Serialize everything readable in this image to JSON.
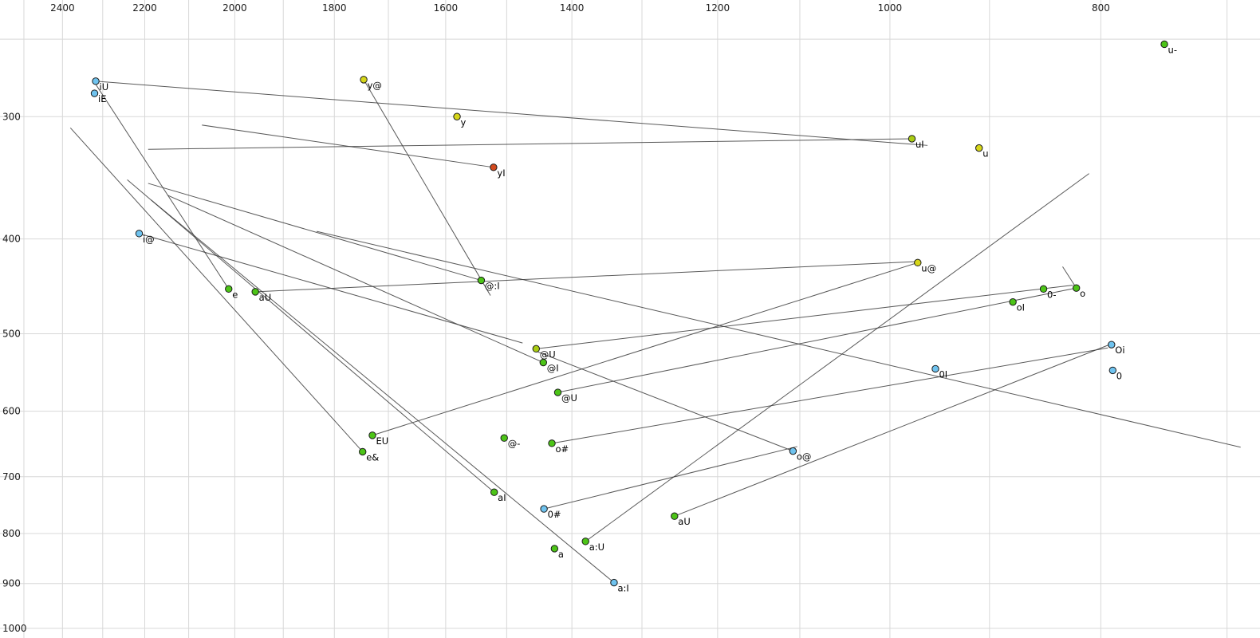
{
  "chart_data": {
    "type": "scatter",
    "title": "",
    "xlabel": "",
    "ylabel": "",
    "x_scale": "log",
    "y_scale": "log",
    "legend": "none",
    "grid": "on",
    "x_axis": {
      "position": "top",
      "reversed": true,
      "domain": [
        2564,
        676
      ],
      "ticks": [
        {
          "value": 2400,
          "label": "2400"
        },
        {
          "value": 2200,
          "label": "2200"
        },
        {
          "value": 2000,
          "label": "2000"
        },
        {
          "value": 1800,
          "label": "1800"
        },
        {
          "value": 1600,
          "label": "1600"
        },
        {
          "value": 1400,
          "label": "1400"
        },
        {
          "value": 1200,
          "label": "1200"
        },
        {
          "value": 1000,
          "label": "1000"
        },
        {
          "value": 800,
          "label": "800"
        }
      ],
      "grid": [
        2500,
        2400,
        2300,
        2200,
        2100,
        2000,
        1900,
        1800,
        1700,
        1600,
        1500,
        1400,
        1300,
        1200,
        1100,
        1000,
        900,
        800,
        700
      ]
    },
    "y_axis": {
      "position": "left",
      "reversed": false,
      "domain": [
        228,
        1023
      ],
      "ticks": [
        {
          "value": 300,
          "label": "300"
        },
        {
          "value": 400,
          "label": "400"
        },
        {
          "value": 500,
          "label": "500"
        },
        {
          "value": 600,
          "label": "600"
        },
        {
          "value": 700,
          "label": "700"
        },
        {
          "value": 800,
          "label": "800"
        },
        {
          "value": 900,
          "label": "900"
        },
        {
          "value": 1000,
          "label": "1000"
        }
      ],
      "grid": [
        250,
        300,
        400,
        500,
        600,
        700,
        800,
        900,
        1000
      ]
    },
    "style": {
      "background": "#ffffff",
      "grid_color": "#d8d8d8",
      "line_color": "#3c3c3c",
      "point_stroke": "#1a1a1a",
      "palette": {
        "green": "#4cc417",
        "yellow": "#d6d619",
        "yellowgreen": "#a9cc12",
        "blue": "#6fc3ef",
        "red": "#d2491e"
      }
    },
    "points": [
      {
        "label": "u-",
        "f2": 748,
        "f1": 253,
        "color": "green"
      },
      {
        "label": "iU",
        "f2": 2317,
        "f1": 276,
        "color": "blue"
      },
      {
        "label": "iE",
        "f2": 2320,
        "f1": 284,
        "color": "blue"
      },
      {
        "label": "y@",
        "f2": 1745,
        "f1": 275,
        "color": "yellow"
      },
      {
        "label": "y",
        "f2": 1581,
        "f1": 300,
        "color": "yellow"
      },
      {
        "label": "uI",
        "f2": 977,
        "f1": 316,
        "color": "yellowgreen"
      },
      {
        "label": "u",
        "f2": 910,
        "f1": 323,
        "color": "yellow"
      },
      {
        "label": "yI",
        "f2": 1521,
        "f1": 338,
        "color": "red"
      },
      {
        "label": "i@",
        "f2": 2213,
        "f1": 395,
        "color": "blue"
      },
      {
        "label": "e",
        "f2": 2013,
        "f1": 450,
        "color": "green"
      },
      {
        "label": "aU",
        "f2": 1957,
        "f1": 453,
        "color": "green"
      },
      {
        "label": "@:I",
        "f2": 1541,
        "f1": 441,
        "color": "green"
      },
      {
        "label": "u@",
        "f2": 971,
        "f1": 423,
        "color": "yellow"
      },
      {
        "label": "0-",
        "f2": 850,
        "f1": 450,
        "color": "green"
      },
      {
        "label": "o",
        "f2": 821,
        "f1": 449,
        "color": "green"
      },
      {
        "label": "oI",
        "f2": 878,
        "f1": 464,
        "color": "green"
      },
      {
        "label": "@U",
        "f2": 1454,
        "f1": 518,
        "color": "yellowgreen"
      },
      {
        "label": "@I",
        "f2": 1443,
        "f1": 535,
        "color": "green"
      },
      {
        "label": "Oi",
        "f2": 791,
        "f1": 513,
        "color": "blue"
      },
      {
        "label": "0I",
        "f2": 953,
        "f1": 543,
        "color": "blue"
      },
      {
        "label": "0",
        "f2": 790,
        "f1": 545,
        "color": "blue"
      },
      {
        "label": "@U",
        "f2": 1421,
        "f1": 574,
        "color": "green"
      },
      {
        "label": "EU",
        "f2": 1729,
        "f1": 635,
        "color": "green"
      },
      {
        "label": "e&",
        "f2": 1747,
        "f1": 660,
        "color": "green"
      },
      {
        "label": "@-",
        "f2": 1504,
        "f1": 639,
        "color": "green"
      },
      {
        "label": "o#",
        "f2": 1430,
        "f1": 647,
        "color": "green"
      },
      {
        "label": "o@",
        "f2": 1108,
        "f1": 659,
        "color": "blue"
      },
      {
        "label": "aI",
        "f2": 1520,
        "f1": 726,
        "color": "green"
      },
      {
        "label": "0#",
        "f2": 1442,
        "f1": 755,
        "color": "blue"
      },
      {
        "label": "aU",
        "f2": 1256,
        "f1": 768,
        "color": "green"
      },
      {
        "label": "a:U",
        "f2": 1380,
        "f1": 815,
        "color": "green"
      },
      {
        "label": "a",
        "f2": 1426,
        "f1": 829,
        "color": "green"
      },
      {
        "label": "a:I",
        "f2": 1339,
        "f1": 898,
        "color": "blue"
      }
    ],
    "segments": [
      [
        2317,
        276,
        961,
        321
      ],
      [
        977,
        316,
        2192,
        324
      ],
      [
        1745,
        275,
        1526,
        457
      ],
      [
        1521,
        338,
        2071,
        306
      ],
      [
        2213,
        395,
        1475,
        511
      ],
      [
        2317,
        278,
        2013,
        450
      ],
      [
        1957,
        453,
        973,
        422
      ],
      [
        1541,
        441,
        2192,
        351
      ],
      [
        1454,
        518,
        824,
        446
      ],
      [
        1443,
        535,
        2147,
        361
      ],
      [
        1421,
        574,
        821,
        449
      ],
      [
        1729,
        635,
        971,
        423
      ],
      [
        1747,
        660,
        2380,
        308
      ],
      [
        1430,
        647,
        794,
        517
      ],
      [
        1108,
        659,
        1454,
        521
      ],
      [
        1520,
        726,
        2241,
        348
      ],
      [
        1339,
        898,
        2185,
        365
      ],
      [
        1442,
        755,
        1103,
        652
      ],
      [
        1380,
        815,
        810,
        343
      ],
      [
        1256,
        768,
        791,
        512
      ],
      [
        833,
        427,
        821,
        449
      ],
      [
        1834,
        393,
        690,
        653
      ]
    ]
  }
}
